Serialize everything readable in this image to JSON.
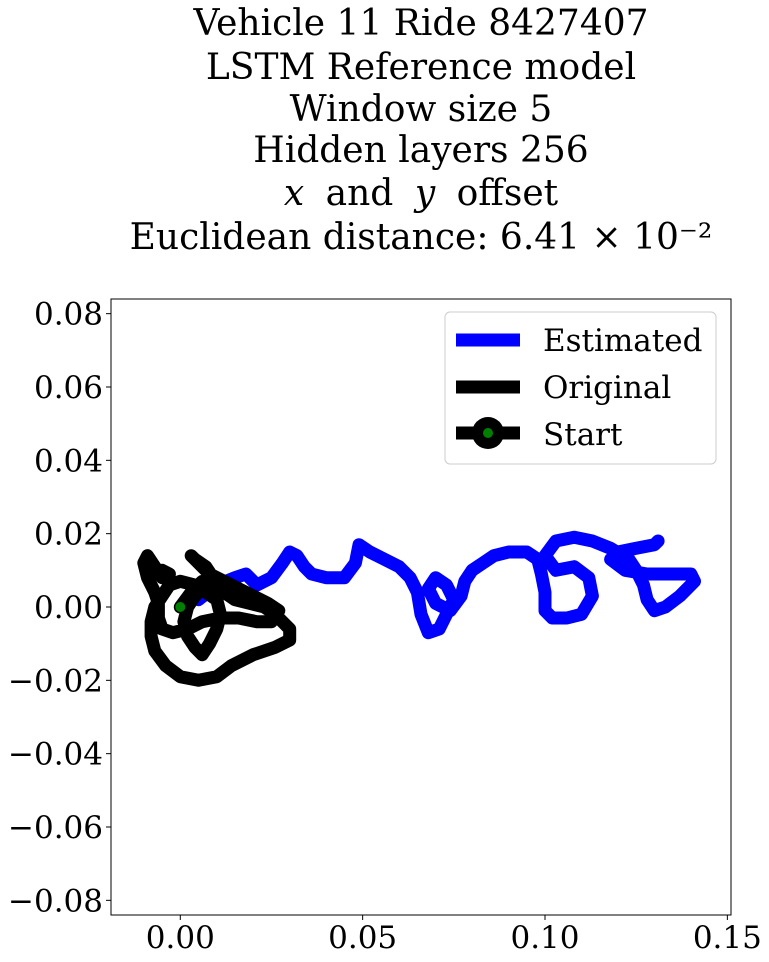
{
  "chart_data": {
    "type": "line",
    "title_lines": [
      "Vehicle 11 Ride 8427407",
      "LSTM Reference model",
      "Window size 5",
      "Hidden layers 256",
      "and",
      "Euclidean distance: 6.41 × 10⁻²"
    ],
    "title_math": {
      "x": "x",
      "y": "y",
      "offset": "offset"
    },
    "xlim": [
      -0.019,
      0.151
    ],
    "ylim": [
      -0.084,
      0.084
    ],
    "x_ticks": [
      0.0,
      0.05,
      0.1,
      0.15
    ],
    "x_tick_labels": [
      "0.00",
      "0.05",
      "0.10",
      "0.15"
    ],
    "y_ticks": [
      0.08,
      0.06,
      0.04,
      0.02,
      0.0,
      -0.02,
      -0.04,
      -0.06,
      -0.08
    ],
    "y_tick_labels": [
      "0.08",
      "0.06",
      "0.04",
      "0.02",
      "0.00",
      "−0.02",
      "−0.04",
      "−0.06",
      "−0.08"
    ],
    "grid": false,
    "legend_position": "top-right",
    "series": [
      {
        "name": "Estimated",
        "color": "#0000ff",
        "points": [
          [
            0.005,
            0.002
          ],
          [
            0.01,
            0.006
          ],
          [
            0.015,
            0.008
          ],
          [
            0.018,
            0.009
          ],
          [
            0.021,
            0.006
          ],
          [
            0.025,
            0.008
          ],
          [
            0.028,
            0.012
          ],
          [
            0.03,
            0.015
          ],
          [
            0.032,
            0.014
          ],
          [
            0.034,
            0.011
          ],
          [
            0.036,
            0.009
          ],
          [
            0.04,
            0.008
          ],
          [
            0.045,
            0.008
          ],
          [
            0.048,
            0.012
          ],
          [
            0.049,
            0.017
          ],
          [
            0.052,
            0.015
          ],
          [
            0.056,
            0.013
          ],
          [
            0.06,
            0.011
          ],
          [
            0.063,
            0.008
          ],
          [
            0.065,
            0.004
          ],
          [
            0.066,
            -0.002
          ],
          [
            0.068,
            -0.007
          ],
          [
            0.071,
            -0.006
          ],
          [
            0.073,
            -0.002
          ],
          [
            0.075,
            0.002
          ],
          [
            0.073,
            0.006
          ],
          [
            0.07,
            0.008
          ],
          [
            0.068,
            0.005
          ],
          [
            0.07,
            0.001
          ],
          [
            0.074,
            -0.001
          ],
          [
            0.077,
            0.003
          ],
          [
            0.078,
            0.007
          ],
          [
            0.08,
            0.01
          ],
          [
            0.083,
            0.012
          ],
          [
            0.086,
            0.014
          ],
          [
            0.09,
            0.015
          ],
          [
            0.095,
            0.015
          ],
          [
            0.098,
            0.013
          ],
          [
            0.099,
            0.009
          ],
          [
            0.1,
            0.004
          ],
          [
            0.1,
            -0.001
          ],
          [
            0.102,
            -0.003
          ],
          [
            0.106,
            -0.003
          ],
          [
            0.11,
            -0.002
          ],
          [
            0.113,
            0.003
          ],
          [
            0.112,
            0.008
          ],
          [
            0.108,
            0.011
          ],
          [
            0.103,
            0.01
          ],
          [
            0.1,
            0.014
          ],
          [
            0.103,
            0.018
          ],
          [
            0.108,
            0.019
          ],
          [
            0.113,
            0.018
          ],
          [
            0.118,
            0.016
          ],
          [
            0.123,
            0.013
          ],
          [
            0.125,
            0.01
          ],
          [
            0.127,
            0.006
          ],
          [
            0.128,
            0.002
          ],
          [
            0.13,
            -0.001
          ],
          [
            0.133,
            0.0
          ],
          [
            0.137,
            0.003
          ],
          [
            0.141,
            0.007
          ],
          [
            0.14,
            0.009
          ],
          [
            0.134,
            0.009
          ],
          [
            0.128,
            0.009
          ],
          [
            0.122,
            0.01
          ],
          [
            0.118,
            0.013
          ],
          [
            0.12,
            0.015
          ],
          [
            0.125,
            0.016
          ],
          [
            0.13,
            0.017
          ],
          [
            0.131,
            0.018
          ]
        ]
      },
      {
        "name": "Original",
        "color": "#000000",
        "points": [
          [
            0.0,
            0.0
          ],
          [
            0.003,
            0.004
          ],
          [
            0.006,
            0.007
          ],
          [
            0.009,
            0.005
          ],
          [
            0.012,
            0.004
          ],
          [
            0.015,
            0.002
          ],
          [
            0.019,
            0.001
          ],
          [
            0.023,
            0.0
          ],
          [
            0.026,
            -0.002
          ],
          [
            0.028,
            -0.004
          ],
          [
            0.03,
            -0.006
          ],
          [
            0.03,
            -0.009
          ],
          [
            0.026,
            -0.011
          ],
          [
            0.02,
            -0.013
          ],
          [
            0.014,
            -0.016
          ],
          [
            0.01,
            -0.019
          ],
          [
            0.005,
            -0.02
          ],
          [
            0.0,
            -0.019
          ],
          [
            -0.004,
            -0.016
          ],
          [
            -0.007,
            -0.012
          ],
          [
            -0.008,
            -0.008
          ],
          [
            -0.008,
            -0.004
          ],
          [
            -0.007,
            0.0
          ],
          [
            -0.005,
            0.003
          ],
          [
            -0.003,
            0.006
          ],
          [
            0.0,
            0.007
          ],
          [
            0.004,
            0.006
          ],
          [
            0.007,
            0.004
          ],
          [
            0.01,
            0.002
          ],
          [
            0.011,
            -0.002
          ],
          [
            0.01,
            -0.006
          ],
          [
            0.008,
            -0.01
          ],
          [
            0.006,
            -0.013
          ],
          [
            0.004,
            -0.011
          ],
          [
            0.002,
            -0.008
          ],
          [
            0.001,
            -0.004
          ],
          [
            0.002,
            0.0
          ],
          [
            0.004,
            0.003
          ],
          [
            0.007,
            0.006
          ],
          [
            0.009,
            0.008
          ],
          [
            0.007,
            0.011
          ],
          [
            0.004,
            0.013
          ],
          [
            0.003,
            0.014
          ],
          [
            0.005,
            0.012
          ],
          [
            0.008,
            0.009
          ],
          [
            0.012,
            0.007
          ],
          [
            0.016,
            0.005
          ],
          [
            0.02,
            0.003
          ],
          [
            0.024,
            0.001
          ],
          [
            0.027,
            -0.001
          ],
          [
            0.025,
            -0.004
          ],
          [
            0.021,
            -0.004
          ],
          [
            0.016,
            -0.003
          ],
          [
            0.011,
            -0.003
          ],
          [
            0.006,
            -0.004
          ],
          [
            0.002,
            -0.006
          ],
          [
            -0.002,
            -0.007
          ],
          [
            -0.005,
            -0.006
          ],
          [
            -0.006,
            -0.003
          ],
          [
            -0.006,
            0.001
          ],
          [
            -0.007,
            0.004
          ],
          [
            -0.009,
            0.008
          ],
          [
            -0.01,
            0.012
          ],
          [
            -0.009,
            0.014
          ],
          [
            -0.007,
            0.011
          ],
          [
            -0.005,
            0.008
          ],
          [
            -0.003,
            0.009
          ],
          [
            -0.005,
            0.01
          ]
        ]
      }
    ],
    "start_point": {
      "name": "Start",
      "x": 0.0,
      "y": 0.0,
      "marker_color": "#008000"
    },
    "legend": [
      {
        "label": "Estimated",
        "style": "line",
        "color": "#0000ff"
      },
      {
        "label": "Original",
        "style": "line",
        "color": "#000000"
      },
      {
        "label": "Start",
        "style": "line-marker",
        "color": "#000000",
        "marker_color": "#008000"
      }
    ]
  }
}
